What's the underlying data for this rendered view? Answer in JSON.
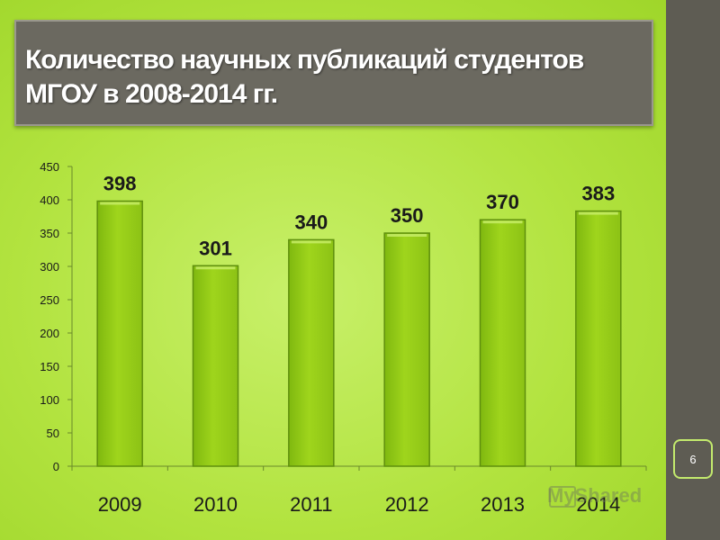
{
  "title": "Количество научных публикаций студентов МГОУ в 2008-2014 гг.",
  "page_number": "6",
  "watermark": "MyShared",
  "colors": {
    "bar_fill": "#9fd51c",
    "bar_edge": "#5f8f0d",
    "background": "#b2e33f",
    "title_box": "#6b6960",
    "sidebar": "#5e5c53"
  },
  "chart_data": {
    "type": "bar",
    "title": "Количество научных публикаций студентов МГОУ в 2008-2014 гг.",
    "categories": [
      "2009",
      "2010",
      "2011",
      "2012",
      "2013",
      "2014"
    ],
    "values": [
      398,
      301,
      340,
      350,
      370,
      383
    ],
    "ylim": [
      0,
      450
    ],
    "yticks": [
      0,
      50,
      100,
      150,
      200,
      250,
      300,
      350,
      400,
      450
    ],
    "xlabel": "",
    "ylabel": "",
    "grid": false,
    "legend": "none",
    "data_labels": true
  }
}
